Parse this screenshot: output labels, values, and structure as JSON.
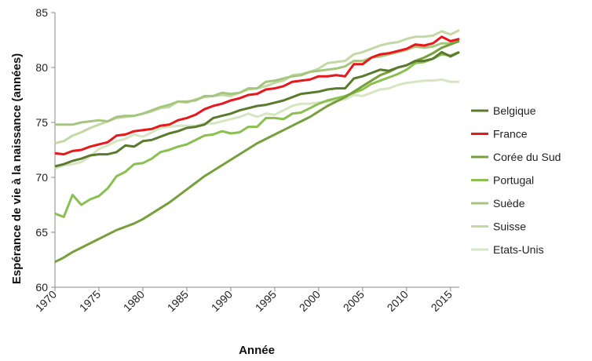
{
  "chart_data": {
    "type": "line",
    "title": "",
    "xlabel": "Année",
    "ylabel": "Espérance de vie à la naissance (années)",
    "xlim": [
      1970,
      2016
    ],
    "ylim": [
      60,
      85
    ],
    "xticks": [
      "1970",
      "1975",
      "1980",
      "1985",
      "1990",
      "1995",
      "2000",
      "2005",
      "2010",
      "2015"
    ],
    "yticks": [
      "60",
      "65",
      "70",
      "75",
      "80",
      "85"
    ],
    "grid": false,
    "legend_position": "right",
    "x": [
      1970,
      1971,
      1972,
      1973,
      1974,
      1975,
      1976,
      1977,
      1978,
      1979,
      1980,
      1981,
      1982,
      1983,
      1984,
      1985,
      1986,
      1987,
      1988,
      1989,
      1990,
      1991,
      1992,
      1993,
      1994,
      1995,
      1996,
      1997,
      1998,
      1999,
      2000,
      2001,
      2002,
      2003,
      2004,
      2005,
      2006,
      2007,
      2008,
      2009,
      2010,
      2011,
      2012,
      2013,
      2014,
      2015,
      2016
    ],
    "series": [
      {
        "name": "Belgique",
        "color": "#5a7a2e",
        "values": [
          71.0,
          71.2,
          71.5,
          71.7,
          72.0,
          72.1,
          72.1,
          72.3,
          72.9,
          72.8,
          73.3,
          73.4,
          73.7,
          74.0,
          74.2,
          74.5,
          74.6,
          74.8,
          75.4,
          75.6,
          75.8,
          76.1,
          76.3,
          76.5,
          76.6,
          76.8,
          77.0,
          77.3,
          77.6,
          77.7,
          77.8,
          78.0,
          78.1,
          78.1,
          79.0,
          79.2,
          79.5,
          79.8,
          79.7,
          80.0,
          80.2,
          80.6,
          80.6,
          80.8,
          81.4,
          81.0,
          81.4
        ]
      },
      {
        "name": "France",
        "color": "#e8171c",
        "values": [
          72.2,
          72.1,
          72.4,
          72.5,
          72.8,
          73.0,
          73.2,
          73.8,
          73.9,
          74.2,
          74.3,
          74.4,
          74.7,
          74.8,
          75.2,
          75.4,
          75.7,
          76.2,
          76.5,
          76.7,
          77.0,
          77.2,
          77.5,
          77.6,
          78.0,
          78.1,
          78.3,
          78.7,
          78.8,
          78.9,
          79.2,
          79.2,
          79.3,
          79.2,
          80.3,
          80.3,
          80.9,
          81.2,
          81.3,
          81.5,
          81.7,
          82.1,
          82.0,
          82.2,
          82.8,
          82.4,
          82.6
        ]
      },
      {
        "name": "Corée du Sud",
        "color": "#77a03d",
        "values": [
          62.3,
          62.7,
          63.2,
          63.6,
          64.0,
          64.4,
          64.8,
          65.2,
          65.5,
          65.8,
          66.2,
          66.7,
          67.2,
          67.7,
          68.3,
          68.9,
          69.5,
          70.1,
          70.6,
          71.1,
          71.6,
          72.1,
          72.6,
          73.1,
          73.5,
          73.9,
          74.3,
          74.7,
          75.1,
          75.5,
          76.0,
          76.5,
          76.9,
          77.3,
          77.8,
          78.3,
          78.8,
          79.3,
          79.6,
          80.0,
          80.2,
          80.6,
          80.9,
          81.3,
          81.8,
          82.1,
          82.4
        ]
      },
      {
        "name": "Portugal",
        "color": "#8ac050",
        "values": [
          66.7,
          66.4,
          68.4,
          67.5,
          68.0,
          68.3,
          69.0,
          70.1,
          70.5,
          71.2,
          71.3,
          71.7,
          72.3,
          72.5,
          72.8,
          73.0,
          73.4,
          73.8,
          73.9,
          74.2,
          74.0,
          74.1,
          74.6,
          74.6,
          75.4,
          75.4,
          75.3,
          75.8,
          75.9,
          76.3,
          76.7,
          77.0,
          77.2,
          77.4,
          77.7,
          78.0,
          78.5,
          78.8,
          79.1,
          79.4,
          79.8,
          80.4,
          80.5,
          80.8,
          81.2,
          81.1,
          81.4
        ]
      },
      {
        "name": "Suède",
        "color": "#a5c67e",
        "values": [
          74.8,
          74.8,
          74.8,
          75.0,
          75.1,
          75.2,
          75.1,
          75.5,
          75.6,
          75.6,
          75.8,
          76.1,
          76.4,
          76.6,
          76.9,
          76.9,
          77.0,
          77.4,
          77.4,
          77.7,
          77.6,
          77.7,
          78.1,
          78.1,
          78.7,
          78.8,
          79.0,
          79.2,
          79.3,
          79.6,
          79.7,
          79.8,
          79.9,
          80.1,
          80.6,
          80.6,
          80.9,
          81.0,
          81.2,
          81.4,
          81.6,
          81.9,
          81.8,
          81.9,
          82.2,
          82.2,
          82.4
        ]
      },
      {
        "name": "Suisse",
        "color": "#c3d9a5",
        "values": [
          73.1,
          73.3,
          73.8,
          74.1,
          74.5,
          74.8,
          75.1,
          75.4,
          75.5,
          75.6,
          75.8,
          76.0,
          76.3,
          76.4,
          76.9,
          76.8,
          77.1,
          77.3,
          77.4,
          77.5,
          77.4,
          77.7,
          78.0,
          78.1,
          78.3,
          78.6,
          78.8,
          79.3,
          79.4,
          79.6,
          79.9,
          80.4,
          80.5,
          80.6,
          81.2,
          81.4,
          81.7,
          82.0,
          82.2,
          82.3,
          82.6,
          82.8,
          82.8,
          82.9,
          83.3,
          83.0,
          83.4
        ]
      },
      {
        "name": "Etats-Unis",
        "color": "#d6e5c2",
        "values": [
          70.8,
          71.1,
          71.2,
          71.4,
          71.9,
          72.6,
          72.9,
          73.3,
          73.5,
          73.9,
          73.7,
          74.1,
          74.5,
          74.6,
          74.7,
          74.7,
          74.7,
          74.9,
          74.9,
          75.1,
          75.3,
          75.5,
          75.8,
          75.5,
          75.8,
          75.7,
          76.1,
          76.5,
          76.7,
          76.7,
          76.8,
          76.9,
          77.0,
          77.1,
          77.5,
          77.4,
          77.7,
          78.0,
          78.1,
          78.4,
          78.6,
          78.7,
          78.8,
          78.8,
          78.9,
          78.7,
          78.7
        ]
      }
    ]
  }
}
